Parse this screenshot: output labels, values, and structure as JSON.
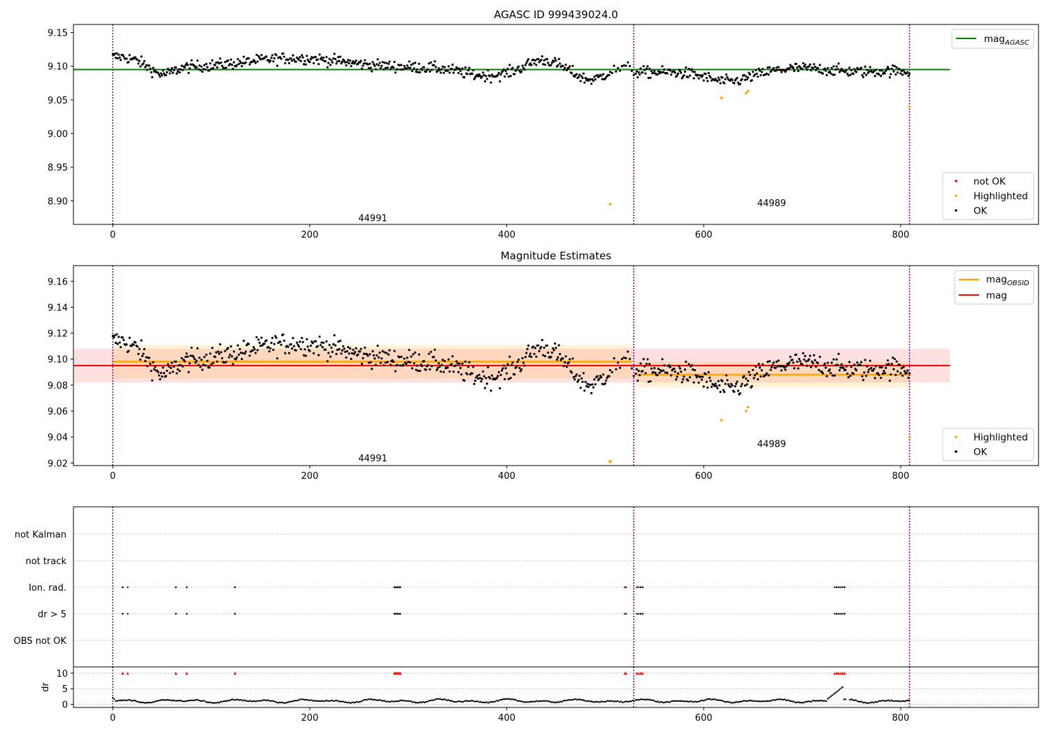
{
  "chart_data": [
    {
      "type": "scatter",
      "title": "AGASC ID 999439024.0",
      "xlim": [
        -40,
        940
      ],
      "ylim": [
        8.865,
        9.162
      ],
      "xticks": [
        0,
        200,
        400,
        600,
        800
      ],
      "yticks": [
        8.9,
        8.95,
        9.0,
        9.05,
        9.1,
        9.15
      ],
      "ytick_labels": [
        "8.90",
        "8.95",
        "9.00",
        "9.05",
        "9.10",
        "9.15"
      ],
      "vlines": [
        0,
        529,
        809
      ],
      "obsid_labels": [
        {
          "text": "44991",
          "x": 264,
          "y": 8.875
        },
        {
          "text": "44989",
          "x": 669,
          "y": 8.897
        }
      ],
      "reference_line": {
        "name": "mag",
        "sub": "AGASC",
        "y": 9.095,
        "x": [
          -40,
          850
        ],
        "color": "#008000"
      },
      "series": [
        {
          "name": "not OK",
          "color": "#ff0000"
        },
        {
          "name": "Highlighted",
          "color": "#ffa500",
          "points": [
            [
              505,
              8.895
            ],
            [
              618,
              9.053
            ],
            [
              643,
              9.06
            ],
            [
              645,
              9.063
            ],
            [
              809,
              9.04
            ]
          ]
        },
        {
          "name": "OK",
          "color": "#000000"
        }
      ],
      "legend_upper": "top-right",
      "legend_lower": "bottom-right"
    },
    {
      "type": "scatter",
      "title": "Magnitude Estimates",
      "xlim": [
        -40,
        940
      ],
      "ylim": [
        9.018,
        9.172
      ],
      "xticks": [
        0,
        200,
        400,
        600,
        800
      ],
      "yticks": [
        9.02,
        9.04,
        9.06,
        9.08,
        9.1,
        9.12,
        9.14,
        9.16
      ],
      "ytick_labels": [
        "9.02",
        "9.04",
        "9.06",
        "9.08",
        "9.10",
        "9.12",
        "9.14",
        "9.16"
      ],
      "vlines": [
        0,
        529,
        809
      ],
      "obsid_labels": [
        {
          "text": "44991",
          "x": 264,
          "y": 9.024
        },
        {
          "text": "44989",
          "x": 669,
          "y": 9.035
        }
      ],
      "mag_line": {
        "name": "mag",
        "y": 9.095,
        "band": [
          9.082,
          9.108
        ],
        "x": [
          -40,
          850
        ],
        "color": "#ff0000"
      },
      "obsid_lines": [
        {
          "x": [
            0,
            527
          ],
          "y": 9.098,
          "band": [
            9.085,
            9.111
          ]
        },
        {
          "x": [
            531,
            809
          ],
          "y": 9.088,
          "band": [
            9.078,
            9.098
          ]
        }
      ],
      "obsid_line_style": {
        "name": "mag",
        "sub": "OBSID",
        "color": "#ffa500"
      },
      "series": [
        {
          "name": "Highlighted",
          "color": "#ffa500",
          "points": [
            [
              505,
              9.021
            ],
            [
              618,
              9.053
            ],
            [
              643,
              9.06
            ],
            [
              645,
              9.063
            ],
            [
              809,
              9.04
            ]
          ]
        },
        {
          "name": "OK",
          "color": "#000000"
        }
      ],
      "legend_upper": "top-right",
      "legend_lower": "bottom-right"
    },
    {
      "type": "scatter",
      "xlim": [
        -40,
        940
      ],
      "categories": [
        "not Kalman",
        "not track",
        "Ion. rad.",
        "dr > 5",
        "OBS not OK"
      ],
      "vlines": [
        0,
        529,
        809
      ],
      "flag_x": [
        10,
        15,
        64,
        75,
        124,
        286,
        287,
        288,
        289,
        290,
        291,
        292,
        520,
        521,
        532,
        534,
        536,
        538,
        733,
        735,
        737,
        739,
        741,
        743
      ]
    },
    {
      "type": "line",
      "ylabel": "dr",
      "xlim": [
        -40,
        940
      ],
      "ylim": [
        -1,
        12
      ],
      "xticks": [
        0,
        200,
        400,
        600,
        800
      ],
      "yticks": [
        0,
        5,
        10
      ],
      "ytick_labels": [
        "0",
        "5",
        "10"
      ],
      "vlines": [
        0,
        529,
        809
      ],
      "clip_value": 10,
      "clip_color": "#ff0000"
    }
  ]
}
